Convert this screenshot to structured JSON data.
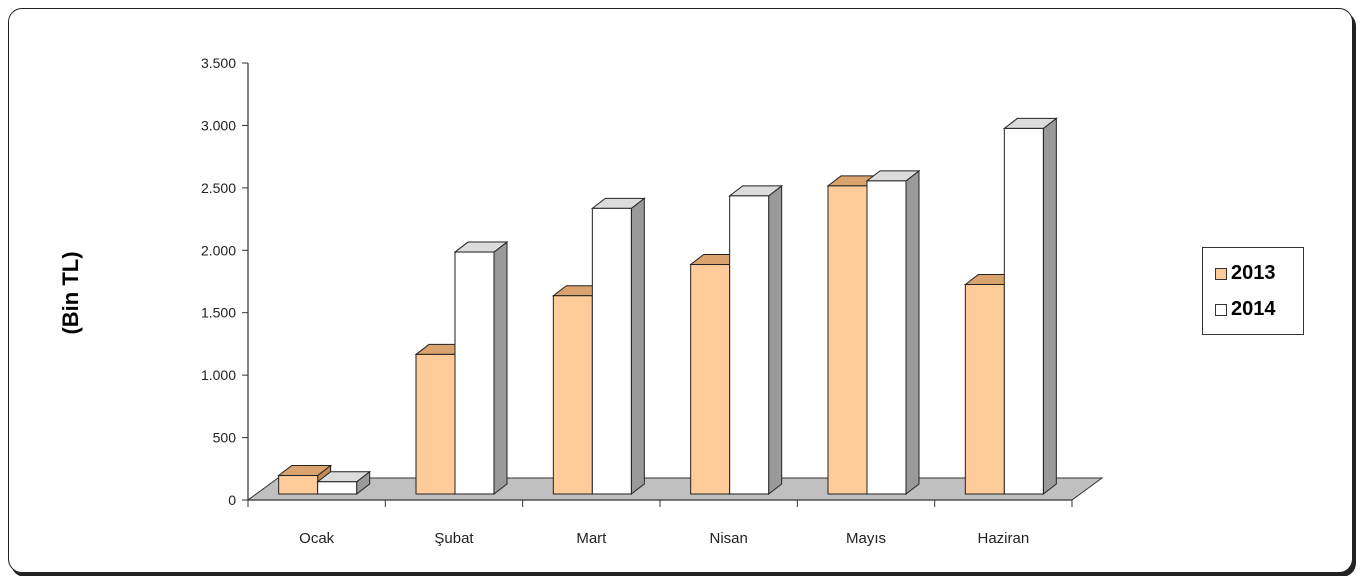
{
  "chart_data": {
    "type": "bar",
    "categories": [
      "Ocak",
      "Şubat",
      "Mart",
      "Nisan",
      "Mayıs",
      "Haziran"
    ],
    "series": [
      {
        "name": "2013",
        "values": [
          260,
          1230,
          1700,
          1950,
          2580,
          1790
        ],
        "color": "#ffcc99",
        "top_color": "#d9a36e",
        "side_color": "#c08a55"
      },
      {
        "name": "2014",
        "values": [
          210,
          2050,
          2400,
          2500,
          2620,
          3040
        ],
        "color": "#ffffff",
        "top_color": "#dcdcdc",
        "side_color": "#9a9a9a"
      }
    ],
    "ylabel": "(Bin TL)",
    "ylim": [
      0,
      3500
    ],
    "yticks": [
      0,
      500,
      1000,
      1500,
      2000,
      2500,
      3000,
      3500
    ],
    "ytick_labels": [
      "0",
      "500",
      "1.000",
      "1.500",
      "2.000",
      "2.500",
      "3.000",
      "3.500"
    ],
    "legend_position": "right",
    "grid": false,
    "floor_color": "#c0c0c0"
  }
}
